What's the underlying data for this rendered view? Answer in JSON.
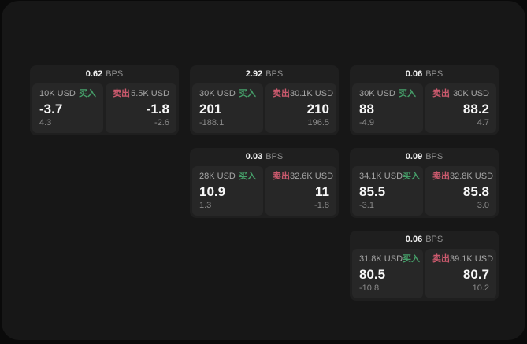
{
  "labels": {
    "buy": "买入",
    "sell": "卖出",
    "bps_unit": "BPS"
  },
  "colors": {
    "buy_accent": "#46a06a",
    "sell_accent": "#cc5a6e",
    "surface": "#171717",
    "card": "#1f1f1f",
    "panel": "#272727"
  },
  "cards": [
    {
      "bps": "0.62",
      "buy": {
        "size": "10K USD",
        "value": "-3.7",
        "sub": "4.3"
      },
      "sell": {
        "size": "5.5K USD",
        "value": "-1.8",
        "sub": "-2.6"
      }
    },
    {
      "bps": "2.92",
      "buy": {
        "size": "30K USD",
        "value": "201",
        "sub": "-188.1"
      },
      "sell": {
        "size": "30.1K USD",
        "value": "210",
        "sub": "196.5"
      }
    },
    {
      "bps": "0.06",
      "buy": {
        "size": "30K USD",
        "value": "88",
        "sub": "-4.9"
      },
      "sell": {
        "size": "30K USD",
        "value": "88.2",
        "sub": "4.7"
      }
    },
    {
      "bps": "0.03",
      "buy": {
        "size": "28K USD",
        "value": "10.9",
        "sub": "1.3"
      },
      "sell": {
        "size": "32.6K USD",
        "value": "11",
        "sub": "-1.8"
      }
    },
    {
      "bps": "0.09",
      "buy": {
        "size": "34.1K USD",
        "value": "85.5",
        "sub": "-3.1"
      },
      "sell": {
        "size": "32.8K USD",
        "value": "85.8",
        "sub": "3.0"
      }
    },
    {
      "bps": "0.06",
      "buy": {
        "size": "31.8K USD",
        "value": "80.5",
        "sub": "-10.8"
      },
      "sell": {
        "size": "39.1K USD",
        "value": "80.7",
        "sub": "10.2"
      }
    }
  ]
}
